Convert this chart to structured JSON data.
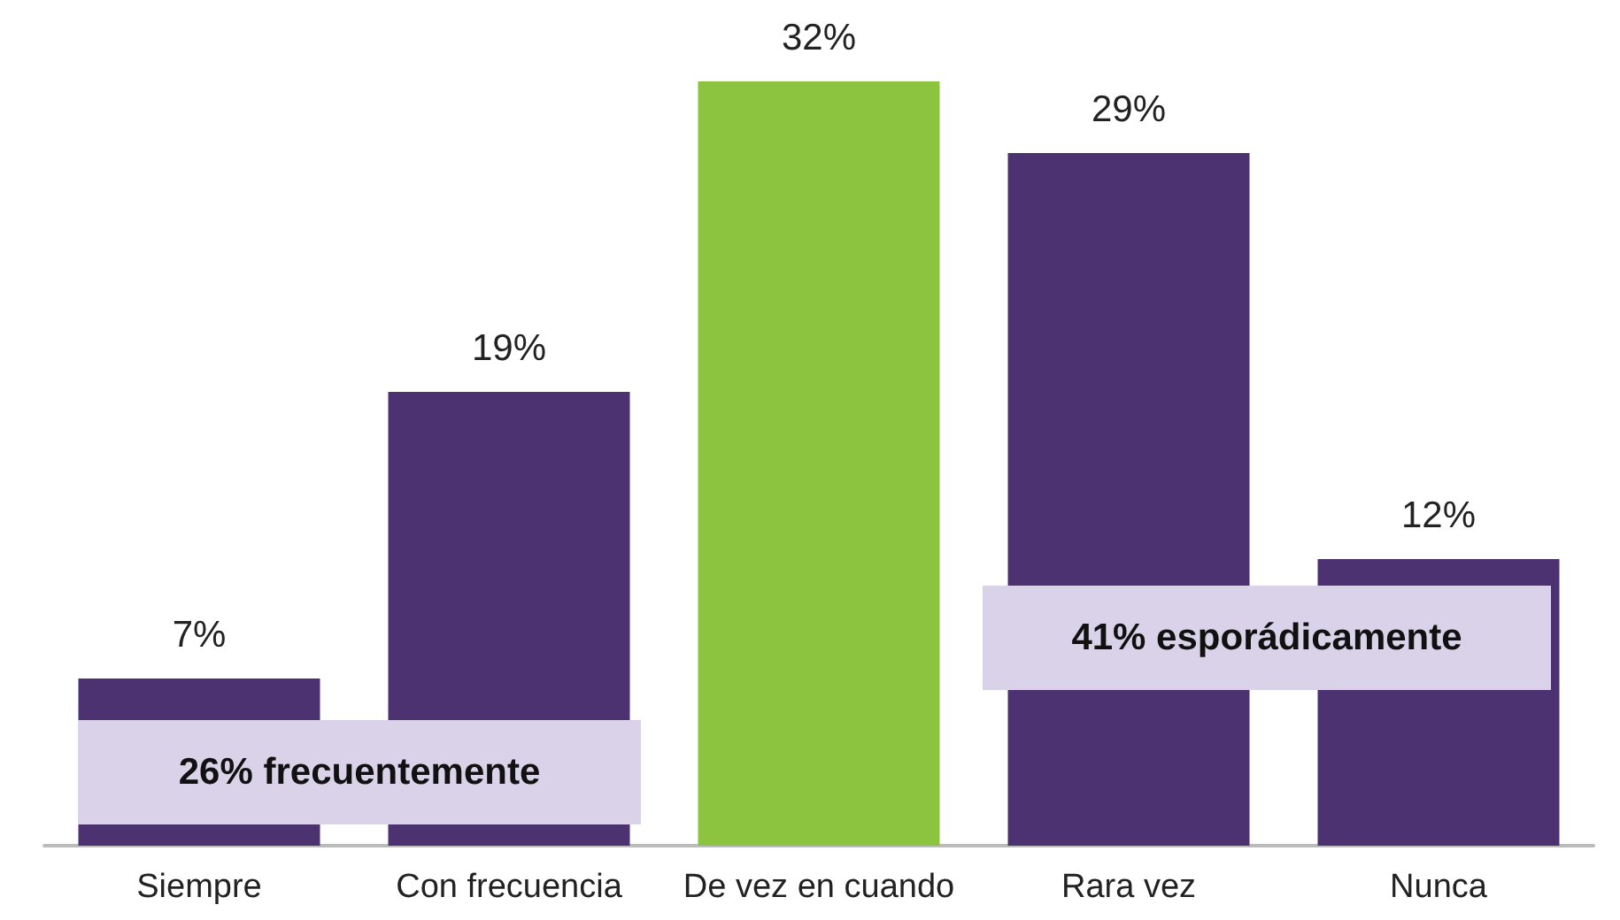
{
  "chart_data": {
    "type": "bar",
    "categories": [
      "Siempre",
      "Con frecuencia",
      "De vez en cuando",
      "Rara vez",
      "Nunca"
    ],
    "values": [
      7,
      19,
      32,
      29,
      12
    ],
    "colors": [
      "#4d3272",
      "#4d3272",
      "#8cc43f",
      "#4d3272",
      "#4d3272"
    ],
    "value_labels": [
      "7%",
      "19%",
      "32%",
      "29%",
      "12%"
    ],
    "annotations": [
      "26% frecuentemente",
      "41% esporádicamente"
    ]
  }
}
